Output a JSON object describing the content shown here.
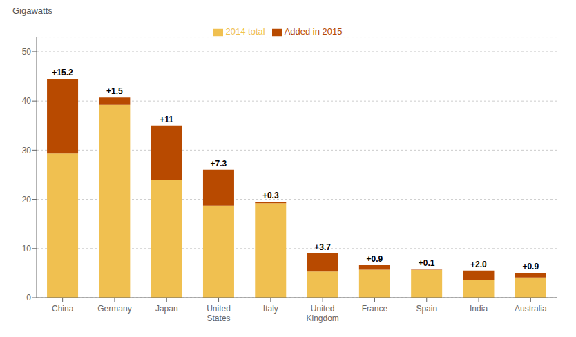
{
  "chart_data": {
    "type": "bar",
    "stacked": true,
    "ylabel": "Gigawatts",
    "categories": [
      "China",
      "Germany",
      "Japan",
      "United\nStates",
      "Italy",
      "United\nKingdom",
      "France",
      "Spain",
      "India",
      "Australia"
    ],
    "series": [
      {
        "name": "2014 total",
        "color": "#F0C050",
        "values": [
          29.3,
          39.2,
          24.0,
          18.7,
          19.2,
          5.3,
          5.7,
          5.6,
          3.5,
          4.1
        ]
      },
      {
        "name": "Added in 2015",
        "color": "#B84A00",
        "values": [
          15.2,
          1.5,
          11.0,
          7.3,
          0.3,
          3.7,
          0.9,
          0.1,
          2.0,
          0.9
        ],
        "value_labels": [
          "+15.2",
          "+1.5",
          "+11",
          "+7.3",
          "+0.3",
          "+3.7",
          "+0.9",
          "+0.1",
          "+2.0",
          "+0.9"
        ]
      }
    ],
    "ylim": [
      0,
      53
    ],
    "yticks": [
      0,
      10,
      20,
      30,
      40,
      50
    ],
    "grid": true,
    "legend": "upper center",
    "data_labels": true
  }
}
